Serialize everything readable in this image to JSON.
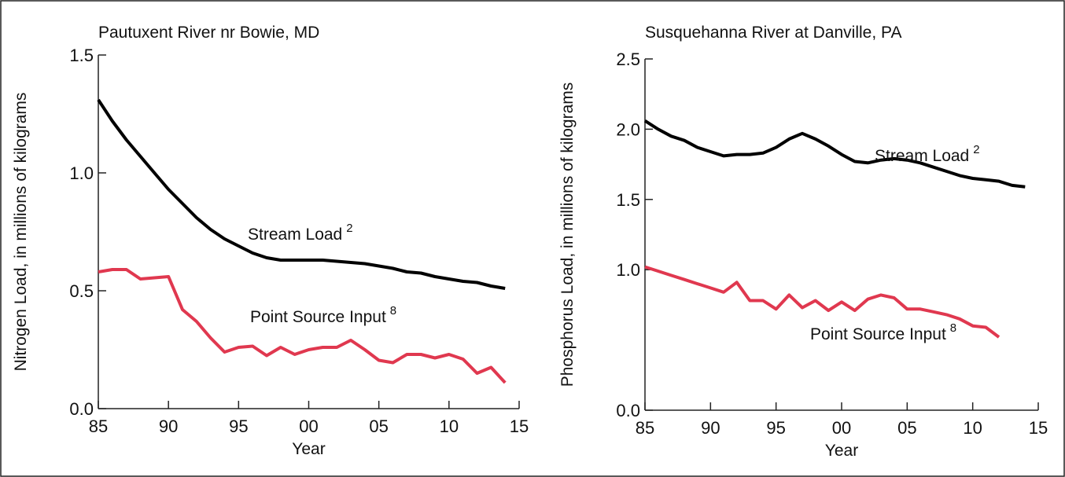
{
  "chart_data": [
    {
      "type": "line",
      "title": "Pautuxent River nr Bowie, MD",
      "x_label": "Year",
      "y_label": "Nitrogen Load, in millions of kilograms",
      "x": [
        1985,
        1986,
        1987,
        1988,
        1989,
        1990,
        1991,
        1992,
        1993,
        1994,
        1995,
        1996,
        1997,
        1998,
        1999,
        2000,
        2001,
        2002,
        2003,
        2004,
        2005,
        2006,
        2007,
        2008,
        2009,
        2010,
        2011,
        2012,
        2013,
        2014
      ],
      "xlim": [
        1985,
        2015
      ],
      "xticks": [
        {
          "value": 1985,
          "label": "85"
        },
        {
          "value": 1990,
          "label": "90"
        },
        {
          "value": 1995,
          "label": "95"
        },
        {
          "value": 2000,
          "label": "00"
        },
        {
          "value": 2005,
          "label": "05"
        },
        {
          "value": 2010,
          "label": "10"
        },
        {
          "value": 2015,
          "label": "15"
        }
      ],
      "ylim": [
        0,
        1.5
      ],
      "yticks": [
        {
          "value": 0,
          "label": "0.0"
        },
        {
          "value": 0.5,
          "label": "0.5"
        },
        {
          "value": 1,
          "label": "1.0"
        },
        {
          "value": 1.5,
          "label": "1.5"
        }
      ],
      "series": [
        {
          "name": "Stream Load",
          "color": "#000000",
          "values": [
            1.31,
            1.22,
            1.14,
            1.07,
            1.0,
            0.93,
            0.87,
            0.81,
            0.76,
            0.72,
            0.69,
            0.66,
            0.64,
            0.63,
            0.63,
            0.63,
            0.63,
            0.625,
            0.62,
            0.615,
            0.605,
            0.595,
            0.58,
            0.575,
            0.56,
            0.55,
            0.54,
            0.535,
            0.52,
            0.51
          ]
        },
        {
          "name": "Point Source Input",
          "color": "#e0384f",
          "values": [
            0.58,
            0.59,
            0.59,
            0.55,
            0.555,
            0.56,
            0.42,
            0.37,
            0.3,
            0.24,
            0.26,
            0.265,
            0.225,
            0.26,
            0.23,
            0.25,
            0.26,
            0.26,
            0.29,
            0.25,
            0.205,
            0.195,
            0.23,
            0.23,
            0.215,
            0.23,
            0.21,
            0.15,
            0.175,
            0.11
          ]
        }
      ],
      "annotations": [
        {
          "text": "Stream Load",
          "sup": "2"
        },
        {
          "text": "Point Source Input",
          "sup": "8"
        }
      ]
    },
    {
      "type": "line",
      "title": "Susquehanna River at Danville, PA",
      "x_label": "Year",
      "y_label": "Phosphorus Load, in millions of kilograms",
      "x": [
        1985,
        1986,
        1987,
        1988,
        1989,
        1990,
        1991,
        1992,
        1993,
        1994,
        1995,
        1996,
        1997,
        1998,
        1999,
        2000,
        2001,
        2002,
        2003,
        2004,
        2005,
        2006,
        2007,
        2008,
        2009,
        2010,
        2011,
        2012,
        2013,
        2014
      ],
      "xlim": [
        1985,
        2015
      ],
      "xticks": [
        {
          "value": 1985,
          "label": "85"
        },
        {
          "value": 1990,
          "label": "90"
        },
        {
          "value": 1995,
          "label": "95"
        },
        {
          "value": 2000,
          "label": "00"
        },
        {
          "value": 2005,
          "label": "05"
        },
        {
          "value": 2010,
          "label": "10"
        },
        {
          "value": 2015,
          "label": "15"
        }
      ],
      "ylim": [
        0,
        2.5
      ],
      "yticks": [
        {
          "value": 0,
          "label": "0.0"
        },
        {
          "value": 1,
          "label": "1.0"
        },
        {
          "value": 1.5,
          "label": "1.5"
        },
        {
          "value": 2,
          "label": "2.0"
        },
        {
          "value": 2.5,
          "label": "2.5"
        }
      ],
      "series": [
        {
          "name": "Stream Load",
          "color": "#000000",
          "values": [
            2.06,
            2.0,
            1.95,
            1.92,
            1.87,
            1.84,
            1.81,
            1.82,
            1.82,
            1.83,
            1.87,
            1.93,
            1.97,
            1.93,
            1.88,
            1.82,
            1.77,
            1.76,
            1.78,
            1.79,
            1.78,
            1.76,
            1.73,
            1.7,
            1.67,
            1.65,
            1.64,
            1.63,
            1.6,
            1.59
          ]
        },
        {
          "name": "Point Source Input",
          "color": "#e0384f",
          "values": [
            1.02,
            0.99,
            0.96,
            0.93,
            0.9,
            0.87,
            0.84,
            0.91,
            0.78,
            0.78,
            0.72,
            0.82,
            0.73,
            0.78,
            0.71,
            0.77,
            0.71,
            0.79,
            0.82,
            0.8,
            0.72,
            0.72,
            0.7,
            0.68,
            0.65,
            0.6,
            0.59,
            0.52,
            null,
            null
          ]
        }
      ],
      "annotations": [
        {
          "text": "Stream Load",
          "sup": "2"
        },
        {
          "text": "Point Source Input",
          "sup": "8"
        }
      ]
    }
  ]
}
